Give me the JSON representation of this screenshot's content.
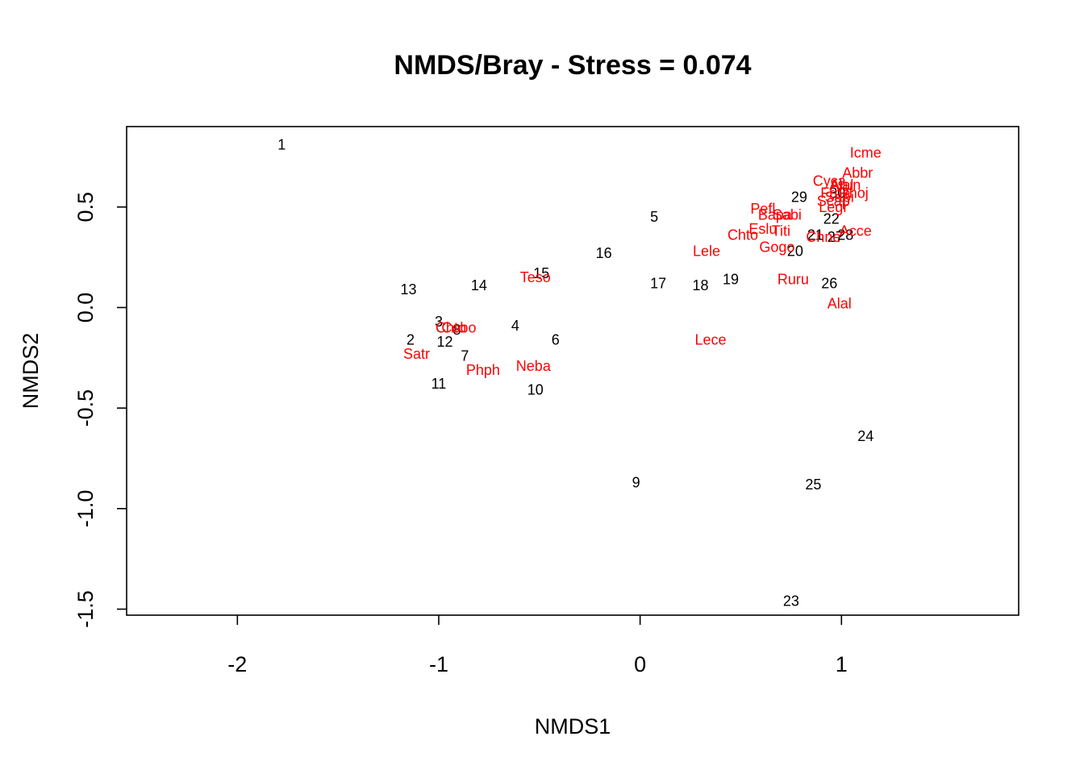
{
  "chart_data": {
    "type": "scatter",
    "title": "NMDS/Bray - Stress = 0.074",
    "xlabel": "NMDS1",
    "ylabel": "NMDS2",
    "xlim": [
      -2.55,
      1.88
    ],
    "ylim": [
      -1.53,
      0.9
    ],
    "xticks": [
      -2,
      -1,
      0,
      1
    ],
    "yticks": [
      -1.5,
      -1.0,
      -0.5,
      0.0,
      0.5
    ],
    "xtick_labels": [
      "-2",
      "-1",
      "0",
      "1"
    ],
    "ytick_labels": [
      "-1.5",
      "-1.0",
      "-0.5",
      "0.0",
      "0.5"
    ],
    "grid": false,
    "legend": "none",
    "colors": {
      "sites": "#000000",
      "species": "#ff0000"
    },
    "series": [
      {
        "points": [
          {
            "label": "1",
            "x": -1.78,
            "y": 0.81
          },
          {
            "label": "2",
            "x": -1.14,
            "y": -0.16
          },
          {
            "label": "3",
            "x": -1.0,
            "y": -0.07
          },
          {
            "label": "4",
            "x": -0.62,
            "y": -0.09
          },
          {
            "label": "5",
            "x": 0.07,
            "y": 0.45
          },
          {
            "label": "6",
            "x": -0.42,
            "y": -0.16
          },
          {
            "label": "7",
            "x": -0.87,
            "y": -0.24
          },
          {
            "label": "8",
            "x": -0.91,
            "y": -0.11
          },
          {
            "label": "9",
            "x": -0.02,
            "y": -0.87
          },
          {
            "label": "10",
            "x": -0.52,
            "y": -0.41
          },
          {
            "label": "11",
            "x": -1.0,
            "y": -0.38
          },
          {
            "label": "12",
            "x": -0.97,
            "y": -0.17
          },
          {
            "label": "13",
            "x": -1.15,
            "y": 0.09
          },
          {
            "label": "14",
            "x": -0.8,
            "y": 0.11
          },
          {
            "label": "15",
            "x": -0.49,
            "y": 0.17
          },
          {
            "label": "16",
            "x": -0.18,
            "y": 0.27
          },
          {
            "label": "17",
            "x": 0.09,
            "y": 0.12
          },
          {
            "label": "18",
            "x": 0.3,
            "y": 0.11
          },
          {
            "label": "19",
            "x": 0.45,
            "y": 0.14
          },
          {
            "label": "20",
            "x": 0.77,
            "y": 0.28
          },
          {
            "label": "21",
            "x": 0.87,
            "y": 0.36
          },
          {
            "label": "22",
            "x": 0.95,
            "y": 0.44
          },
          {
            "label": "23",
            "x": 0.75,
            "y": -1.46
          },
          {
            "label": "24",
            "x": 1.12,
            "y": -0.64
          },
          {
            "label": "25",
            "x": 0.86,
            "y": -0.88
          },
          {
            "label": "26",
            "x": 0.94,
            "y": 0.12
          },
          {
            "label": "27",
            "x": 0.97,
            "y": 0.35
          },
          {
            "label": "28",
            "x": 1.02,
            "y": 0.36
          },
          {
            "label": "29",
            "x": 0.79,
            "y": 0.55
          },
          {
            "label": "30",
            "x": 0.98,
            "y": 0.57
          }
        ]
      },
      {
        "points": [
          {
            "label": "Icme",
            "x": 1.12,
            "y": 0.77
          },
          {
            "label": "Abbr",
            "x": 1.08,
            "y": 0.67
          },
          {
            "label": "Cyca",
            "x": 0.94,
            "y": 0.63
          },
          {
            "label": "Alal",
            "x": 1.0,
            "y": 0.61
          },
          {
            "label": "Frpe",
            "x": 0.97,
            "y": 0.57
          },
          {
            "label": "Arun",
            "x": 1.02,
            "y": 0.61
          },
          {
            "label": "Rhoj",
            "x": 1.06,
            "y": 0.57
          },
          {
            "label": "Sapi",
            "x": 0.99,
            "y": 0.55
          },
          {
            "label": "Scap",
            "x": 0.96,
            "y": 0.53
          },
          {
            "label": "Legr",
            "x": 0.96,
            "y": 0.5
          },
          {
            "label": "Pefl",
            "x": 0.61,
            "y": 0.49
          },
          {
            "label": "Bapa",
            "x": 0.67,
            "y": 0.46
          },
          {
            "label": "Sabi",
            "x": 0.73,
            "y": 0.46
          },
          {
            "label": "Eslu",
            "x": 0.61,
            "y": 0.39
          },
          {
            "label": "Titi",
            "x": 0.7,
            "y": 0.38
          },
          {
            "label": "Chto",
            "x": 0.51,
            "y": 0.36
          },
          {
            "label": "Chne",
            "x": 0.91,
            "y": 0.35
          },
          {
            "label": "Acce",
            "x": 1.07,
            "y": 0.38
          },
          {
            "label": "Gogo",
            "x": 0.68,
            "y": 0.3
          },
          {
            "label": "Lele",
            "x": 0.33,
            "y": 0.28
          },
          {
            "label": "Ruru",
            "x": 0.76,
            "y": 0.14
          },
          {
            "label": "Alal",
            "x": 0.99,
            "y": 0.02
          },
          {
            "label": "Lece",
            "x": 0.35,
            "y": -0.16
          },
          {
            "label": "Teso",
            "x": -0.52,
            "y": 0.15
          },
          {
            "label": "Cobo",
            "x": -0.9,
            "y": -0.1
          },
          {
            "label": "Chto",
            "x": -0.94,
            "y": -0.1
          },
          {
            "label": "Satr",
            "x": -1.11,
            "y": -0.23
          },
          {
            "label": "Phph",
            "x": -0.78,
            "y": -0.31
          },
          {
            "label": "Neba",
            "x": -0.53,
            "y": -0.29
          }
        ]
      }
    ]
  }
}
